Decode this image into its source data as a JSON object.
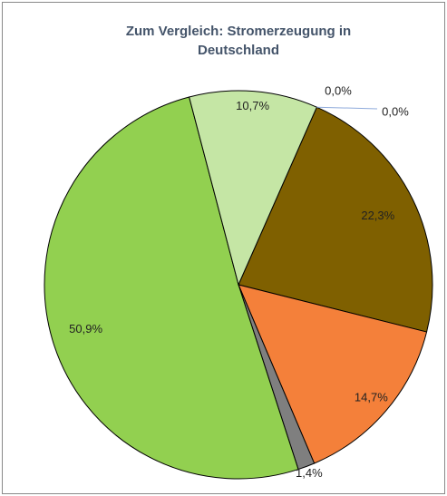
{
  "chart_data": {
    "type": "pie",
    "title": "Zum Vergleich: Stromerzeugung in Deutschland",
    "values": [
      0.0,
      0.0,
      22.3,
      14.7,
      1.4,
      50.9,
      10.7
    ],
    "value_labels": [
      "0,0%",
      "0,0%",
      "22,3%",
      "14,7%",
      "1,4%",
      "50,9%",
      "10,7%"
    ],
    "colors": [
      "#4472c4",
      "#a5a5a5",
      "#7f6000",
      "#f4803a",
      "#7f7f7f",
      "#92d050",
      "#c5e6a5"
    ]
  }
}
